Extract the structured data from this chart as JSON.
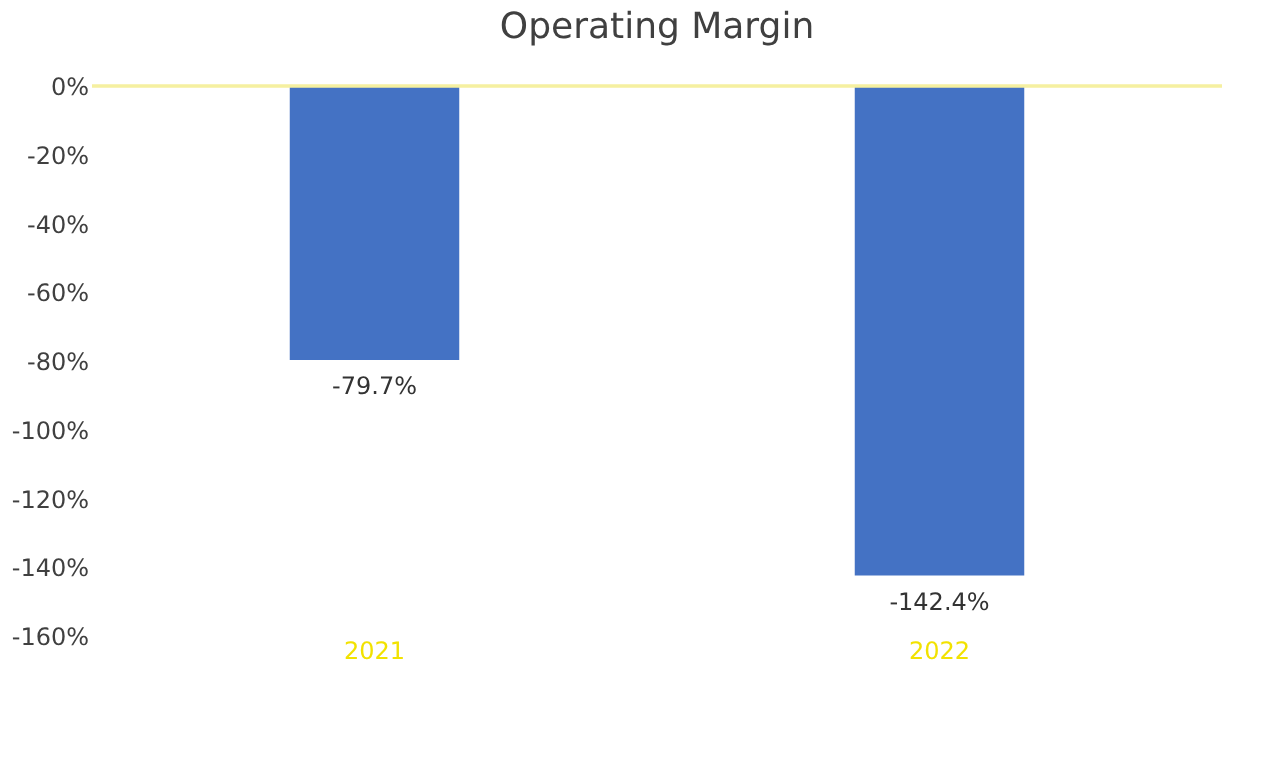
{
  "chart_data": {
    "type": "bar",
    "title": "Operating Margin",
    "categories": [
      "2021",
      "2022"
    ],
    "values": [
      -79.7,
      -142.4
    ],
    "value_labels": [
      "-79.7%",
      "-142.4%"
    ],
    "color": "#4472c4",
    "ylim": [
      -160,
      0
    ],
    "yticks": [
      {
        "value": 0,
        "label": "0%"
      },
      {
        "value": -20,
        "label": "-20%"
      },
      {
        "value": -40,
        "label": "-40%"
      },
      {
        "value": -60,
        "label": "-60%"
      },
      {
        "value": -80,
        "label": "-80%"
      },
      {
        "value": -100,
        "label": "-100%"
      },
      {
        "value": -120,
        "label": "-120%"
      },
      {
        "value": -140,
        "label": "-140%"
      },
      {
        "value": -160,
        "label": "-160%"
      }
    ],
    "grid": false
  }
}
